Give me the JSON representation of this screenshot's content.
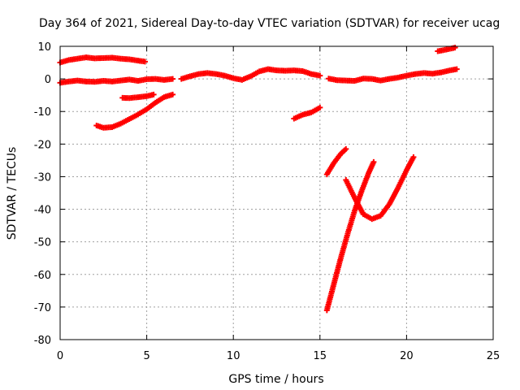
{
  "chart_data": {
    "type": "scatter",
    "title": "Day 364 of 2021, Sidereal Day-to-day VTEC variation (SDTVAR) for receiver ucag",
    "xlabel": "GPS time / hours",
    "ylabel": "SDTVAR / TECUs",
    "xlim": [
      0,
      25
    ],
    "ylim": [
      -80,
      10
    ],
    "xticks": [
      0,
      5,
      10,
      15,
      20,
      25
    ],
    "yticks": [
      10,
      0,
      -10,
      -20,
      -30,
      -40,
      -50,
      -60,
      -70,
      -80
    ],
    "grid": true,
    "marker_color": "#ff0000",
    "series": [
      {
        "x": [
          0.0,
          0.5,
          1.0,
          1.5,
          2.0,
          2.5,
          3.0,
          3.5,
          4.0,
          4.5,
          4.9
        ],
        "y": [
          5.0,
          5.8,
          6.2,
          6.6,
          6.3,
          6.4,
          6.5,
          6.2,
          6.0,
          5.6,
          5.3
        ]
      },
      {
        "x": [
          0.0,
          0.5,
          1.0,
          1.5,
          2.0,
          2.5,
          3.0,
          3.5,
          4.0,
          4.5,
          5.0,
          5.5,
          6.0,
          6.5
        ],
        "y": [
          -1.2,
          -0.8,
          -0.5,
          -0.8,
          -0.9,
          -0.6,
          -0.8,
          -0.5,
          -0.2,
          -0.6,
          -0.1,
          0.0,
          -0.3,
          0.0
        ]
      },
      {
        "x": [
          3.6,
          4.0,
          4.5,
          5.0,
          5.4
        ],
        "y": [
          -5.8,
          -5.9,
          -5.6,
          -5.3,
          -4.8
        ]
      },
      {
        "x": [
          2.1,
          2.5,
          3.0,
          3.5,
          4.0,
          4.5,
          5.0,
          5.5,
          6.0,
          6.5
        ],
        "y": [
          -14.3,
          -15.0,
          -14.8,
          -13.7,
          -12.3,
          -10.9,
          -9.3,
          -7.3,
          -5.6,
          -4.8
        ]
      },
      {
        "x": [
          7.0,
          7.5,
          8.0,
          8.5,
          9.0,
          9.5,
          10.0,
          10.5,
          11.0,
          11.5,
          12.0,
          12.5,
          13.0,
          13.5,
          14.0,
          14.5,
          15.0
        ],
        "y": [
          0.0,
          0.8,
          1.5,
          1.8,
          1.5,
          1.0,
          0.2,
          -0.3,
          0.8,
          2.3,
          3.0,
          2.6,
          2.5,
          2.6,
          2.4,
          1.5,
          1.0
        ]
      },
      {
        "x": [
          13.5,
          14.0,
          14.5,
          15.0
        ],
        "y": [
          -12.2,
          -11.0,
          -10.3,
          -8.8
        ]
      },
      {
        "x": [
          15.5,
          16.0,
          16.5,
          17.0,
          17.5,
          18.0,
          18.5,
          19.0,
          19.5,
          20.0,
          20.5,
          21.0,
          21.5,
          22.0,
          22.5,
          22.9
        ],
        "y": [
          0.1,
          -0.4,
          -0.5,
          -0.6,
          0.1,
          0.0,
          -0.5,
          0.0,
          0.4,
          1.0,
          1.5,
          1.8,
          1.6,
          2.0,
          2.6,
          3.0
        ]
      },
      {
        "x": [
          21.8,
          22.3,
          22.8
        ],
        "y": [
          8.5,
          9.0,
          9.6
        ]
      },
      {
        "x": [
          15.4,
          15.8,
          16.2,
          16.5
        ],
        "y": [
          -29.3,
          -25.8,
          -23.0,
          -21.5
        ]
      },
      {
        "x": [
          15.4,
          15.8,
          16.2,
          16.6,
          17.0,
          17.4,
          17.8,
          18.1
        ],
        "y": [
          -71.0,
          -63.0,
          -55.0,
          -47.5,
          -40.5,
          -34.5,
          -29.0,
          -25.5
        ]
      },
      {
        "x": [
          16.5,
          17.0,
          17.5,
          18.0,
          18.5,
          19.0,
          19.5,
          20.0,
          20.4
        ],
        "y": [
          -31.0,
          -36.5,
          -41.5,
          -43.0,
          -42.0,
          -38.5,
          -33.5,
          -28.0,
          -24.0
        ]
      }
    ]
  }
}
